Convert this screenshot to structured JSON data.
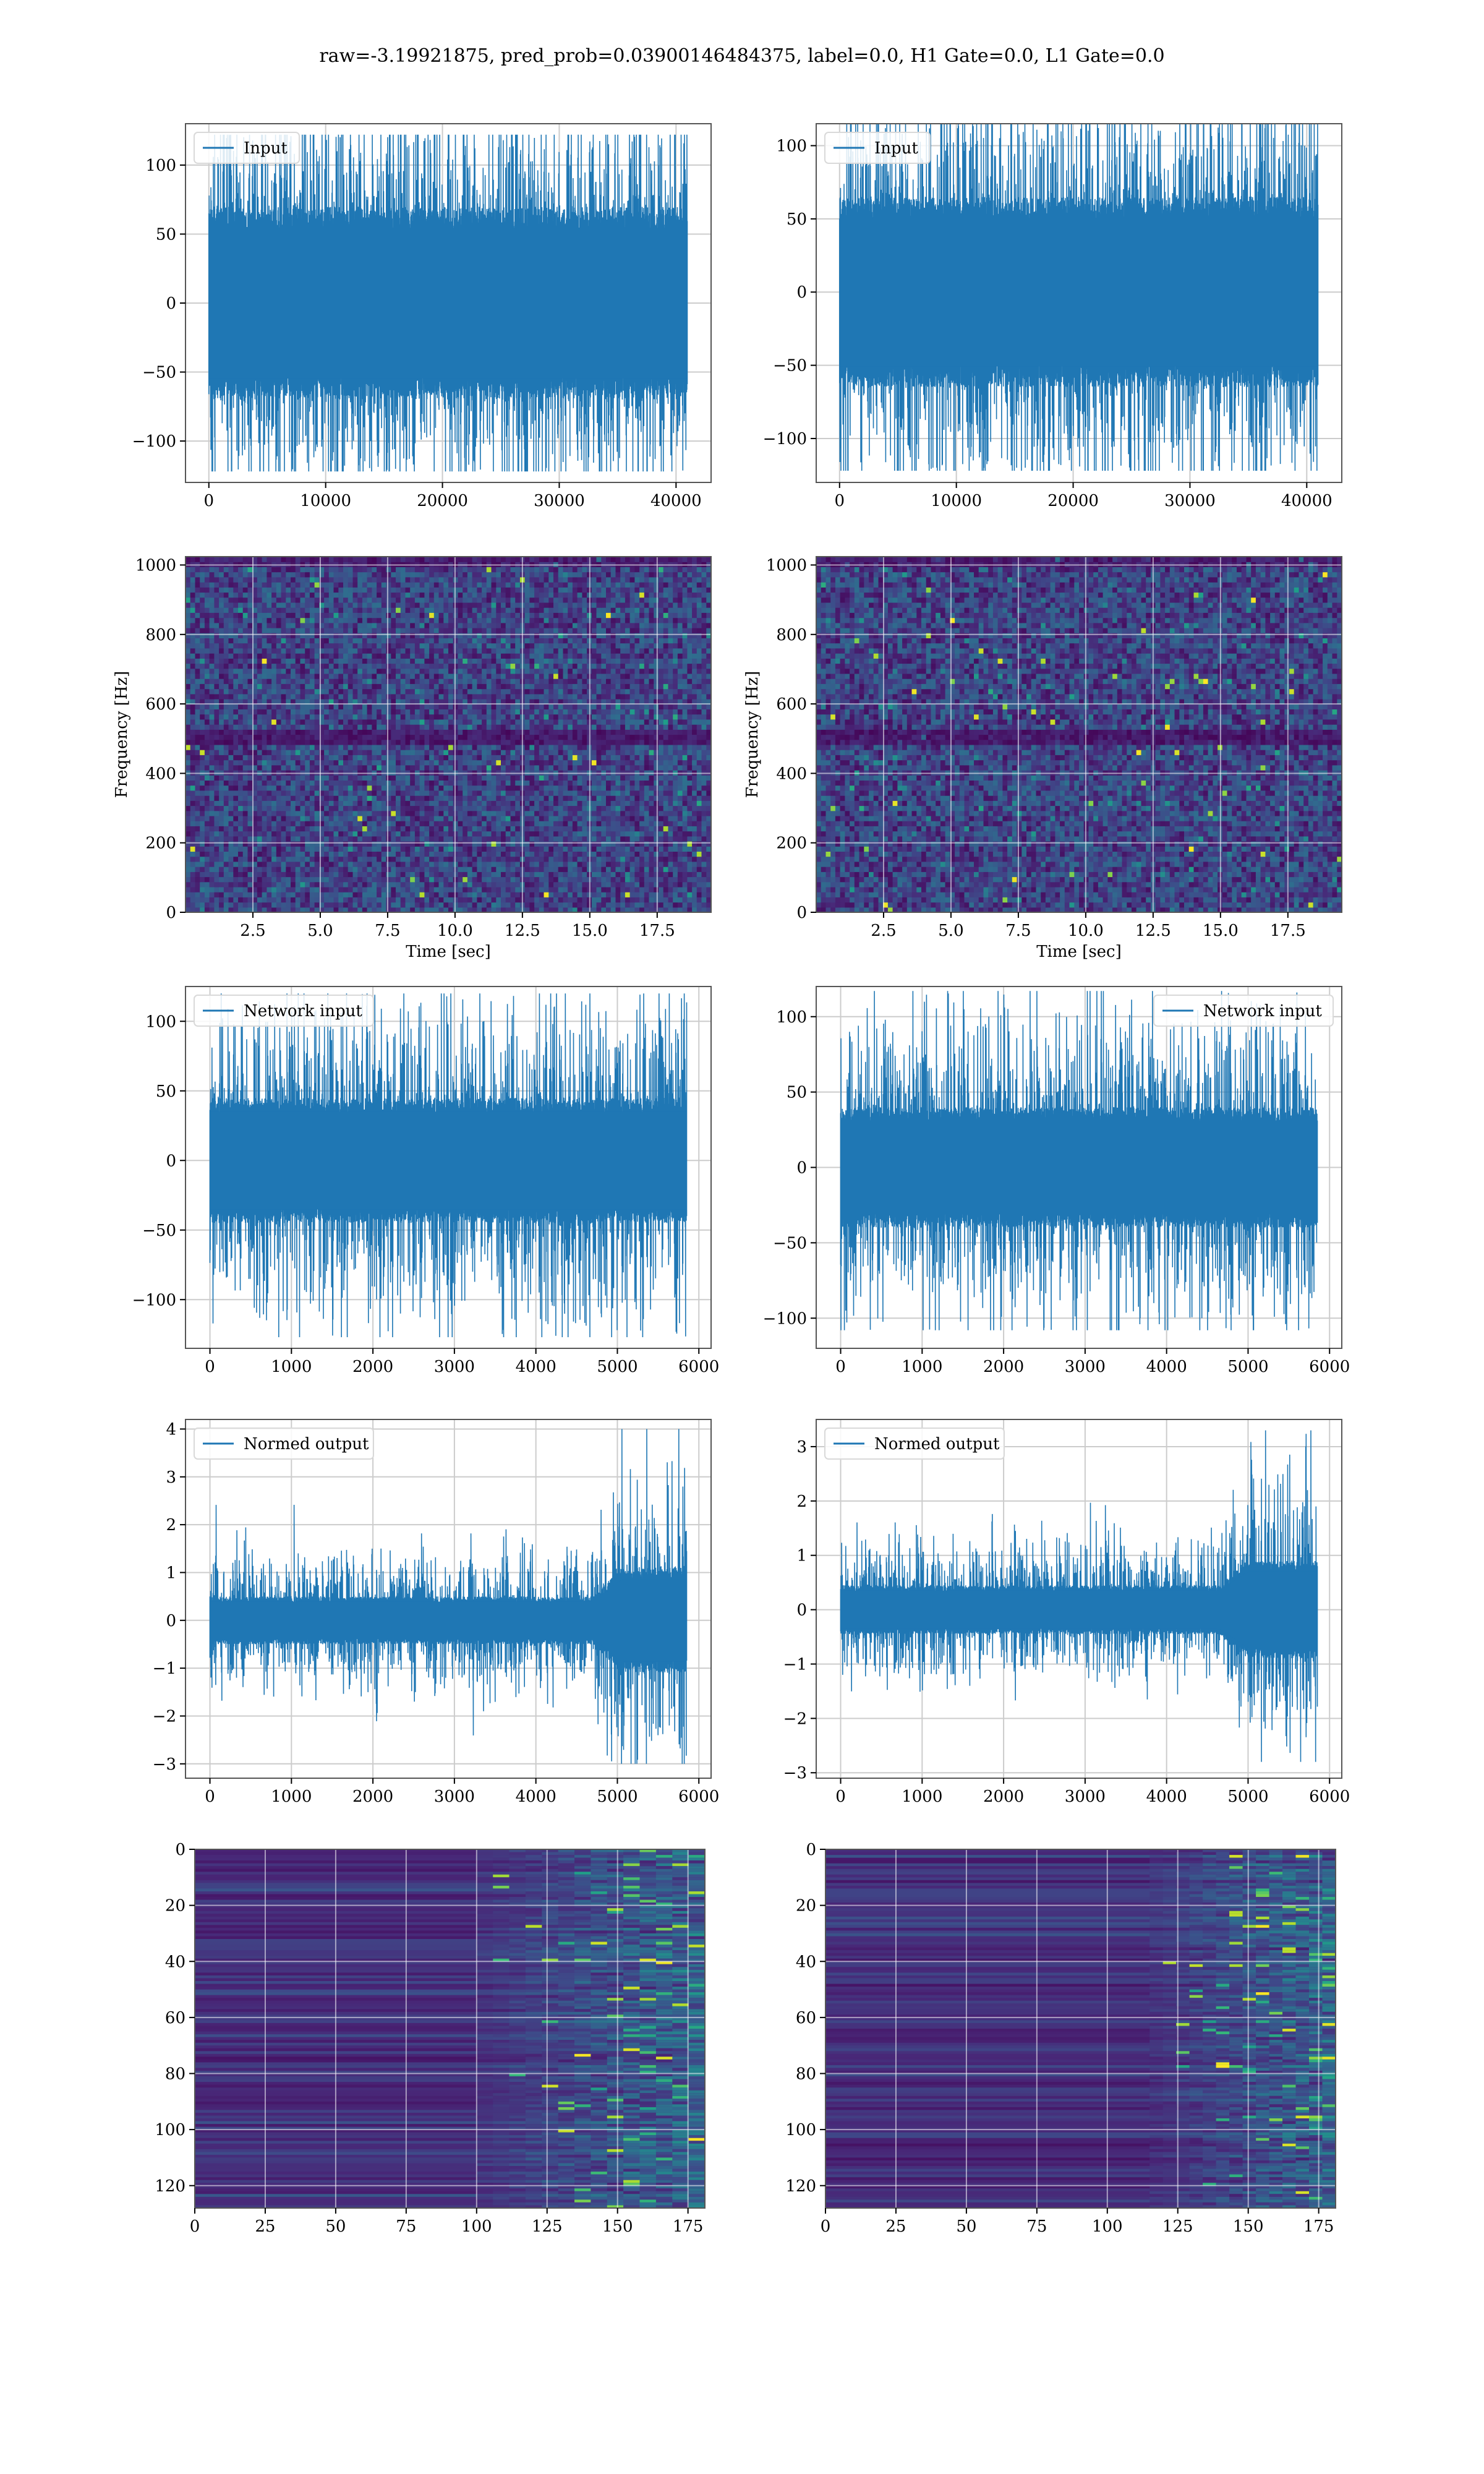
{
  "title": "raw=-3.19921875, pred_prob=0.03900146484375, label=0.0, H1 Gate=0.0, L1 Gate=0.0",
  "colors": {
    "series": "#1f77b4",
    "grid": "#cccccc",
    "viridis_dark": "#440154",
    "viridis_mid": "#21918c",
    "viridis_bright": "#fde725"
  },
  "chart_data": [
    {
      "id": "input-h1",
      "type": "line",
      "legend": "Input",
      "legend_position": "upper-left",
      "xlim": [
        -2000,
        43000
      ],
      "ylim": [
        -130,
        130
      ],
      "xticks": [
        0,
        10000,
        20000,
        30000,
        40000
      ],
      "yticks": [
        -100,
        -50,
        0,
        50,
        100
      ],
      "x_range": [
        0,
        40960
      ],
      "amplitude": {
        "core": 70,
        "envelope": 95,
        "min": -122,
        "max": 122
      },
      "xlabel": "",
      "ylabel": "",
      "grid": true
    },
    {
      "id": "input-l1",
      "type": "line",
      "legend": "Input",
      "legend_position": "upper-left",
      "xlim": [
        -2000,
        43000
      ],
      "ylim": [
        -130,
        115
      ],
      "xticks": [
        0,
        10000,
        20000,
        30000,
        40000
      ],
      "yticks": [
        -100,
        -50,
        0,
        50,
        100
      ],
      "x_range": [
        0,
        40960
      ],
      "amplitude": {
        "core": 65,
        "envelope": 90,
        "min": -122,
        "max": 115
      },
      "xlabel": "",
      "ylabel": "",
      "grid": true
    },
    {
      "id": "spectrogram-h1",
      "type": "heatmap",
      "colormap": "viridis",
      "xlim": [
        0,
        19.5
      ],
      "ylim": [
        0,
        1024
      ],
      "xticks": [
        2.5,
        5.0,
        7.5,
        10.0,
        12.5,
        15.0,
        17.5
      ],
      "yticks": [
        0,
        200,
        400,
        600,
        800,
        1000
      ],
      "xlabel": "Time [sec]",
      "ylabel": "Frequency [Hz]",
      "grid": true,
      "dark_bands_hz": [
        500
      ]
    },
    {
      "id": "spectrogram-l1",
      "type": "heatmap",
      "colormap": "viridis",
      "xlim": [
        0,
        19.5
      ],
      "ylim": [
        0,
        1024
      ],
      "xticks": [
        2.5,
        5.0,
        7.5,
        10.0,
        12.5,
        15.0,
        17.5
      ],
      "yticks": [
        0,
        200,
        400,
        600,
        800,
        1000
      ],
      "xlabel": "Time [sec]",
      "ylabel": "Frequency [Hz]",
      "grid": true,
      "dark_bands_hz": [
        500
      ]
    },
    {
      "id": "network-input-h1",
      "type": "line",
      "legend": "Network input",
      "legend_position": "upper-left",
      "xlim": [
        -300,
        6150
      ],
      "ylim": [
        -135,
        125
      ],
      "xticks": [
        0,
        1000,
        2000,
        3000,
        4000,
        5000,
        6000
      ],
      "yticks": [
        -100,
        -50,
        0,
        50,
        100
      ],
      "x_range": [
        0,
        5850
      ],
      "amplitude": {
        "core": 45,
        "envelope": 80,
        "min": -127,
        "max": 120
      },
      "xlabel": "",
      "ylabel": "",
      "grid": true
    },
    {
      "id": "network-input-l1",
      "type": "line",
      "legend": "Network input",
      "legend_position": "upper-right",
      "xlim": [
        -300,
        6150
      ],
      "ylim": [
        -120,
        120
      ],
      "xticks": [
        0,
        1000,
        2000,
        3000,
        4000,
        5000,
        6000
      ],
      "yticks": [
        -100,
        -50,
        0,
        50,
        100
      ],
      "x_range": [
        0,
        5850
      ],
      "amplitude": {
        "core": 40,
        "envelope": 75,
        "min": -108,
        "max": 117
      },
      "xlabel": "",
      "ylabel": "",
      "grid": true
    },
    {
      "id": "normed-output-h1",
      "type": "line",
      "legend": "Normed output",
      "legend_position": "upper-left",
      "xlim": [
        -300,
        6150
      ],
      "ylim": [
        -3.3,
        4.2
      ],
      "xticks": [
        0,
        1000,
        2000,
        3000,
        4000,
        5000,
        6000
      ],
      "yticks": [
        -3,
        -2,
        -1,
        0,
        1,
        2,
        3,
        4
      ],
      "x_range": [
        0,
        5850
      ],
      "burst": {
        "start": 4700,
        "scale": 2.2
      },
      "amplitude": {
        "core": 0.5,
        "envelope": 1.0,
        "min": -3.0,
        "max": 4.0
      },
      "xlabel": "",
      "ylabel": "",
      "grid": true
    },
    {
      "id": "normed-output-l1",
      "type": "line",
      "legend": "Normed output",
      "legend_position": "upper-left",
      "xlim": [
        -300,
        6150
      ],
      "ylim": [
        -3.1,
        3.5
      ],
      "xticks": [
        0,
        1000,
        2000,
        3000,
        4000,
        5000,
        6000
      ],
      "yticks": [
        -3,
        -2,
        -1,
        0,
        1,
        2,
        3
      ],
      "x_range": [
        0,
        5850
      ],
      "burst": {
        "start": 4650,
        "scale": 2.0
      },
      "amplitude": {
        "core": 0.45,
        "envelope": 0.95,
        "min": -2.8,
        "max": 3.3
      },
      "xlabel": "",
      "ylabel": "",
      "grid": true
    },
    {
      "id": "feature-map-h1",
      "type": "heatmap",
      "colormap": "viridis",
      "xlim": [
        0,
        181
      ],
      "ylim": [
        128,
        0
      ],
      "xticks": [
        0,
        25,
        50,
        75,
        100,
        125,
        150,
        175
      ],
      "yticks": [
        0,
        20,
        40,
        60,
        80,
        100,
        120
      ],
      "activity_start": 100,
      "xlabel": "",
      "ylabel": "",
      "grid": true
    },
    {
      "id": "feature-map-l1",
      "type": "heatmap",
      "colormap": "viridis",
      "xlim": [
        0,
        181
      ],
      "ylim": [
        128,
        0
      ],
      "xticks": [
        0,
        25,
        50,
        75,
        100,
        125,
        150,
        175
      ],
      "yticks": [
        0,
        20,
        40,
        60,
        80,
        100,
        120
      ],
      "activity_start": 115,
      "xlabel": "",
      "ylabel": "",
      "grid": true
    }
  ]
}
